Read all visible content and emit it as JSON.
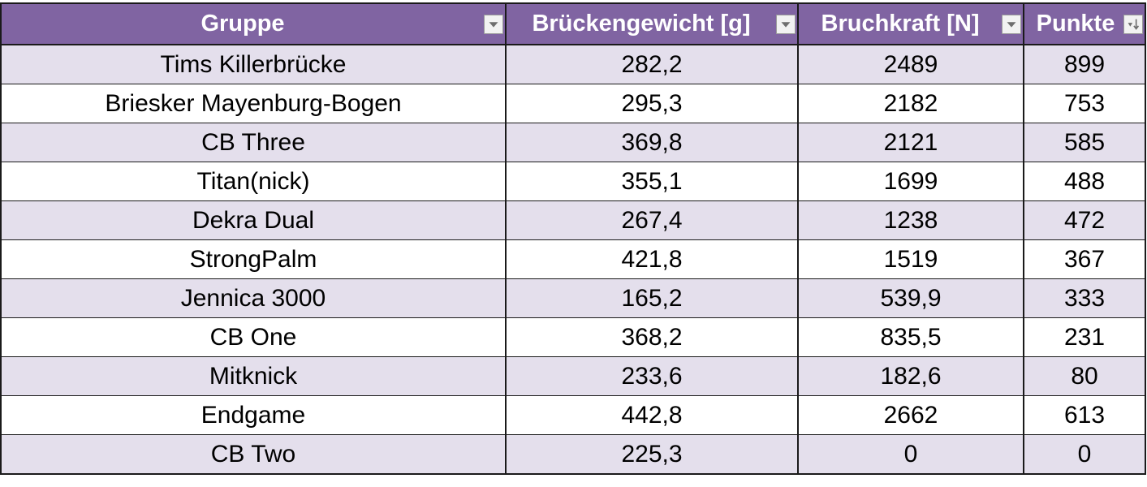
{
  "table": {
    "headers": {
      "gruppe": "Gruppe",
      "gewicht": "Brückengewicht [g]",
      "kraft": "Bruchkraft [N]",
      "punkte": "Punkte"
    },
    "filter_icons": {
      "gruppe": "dropdown-arrow-icon",
      "gewicht": "dropdown-arrow-icon",
      "kraft": "dropdown-arrow-icon",
      "punkte": "sort-descending-icon"
    },
    "rows": [
      {
        "gruppe": "Tims Killerbrücke",
        "gewicht": "282,2",
        "kraft": "2489",
        "punkte": "899"
      },
      {
        "gruppe": "Briesker Mayenburg-Bogen",
        "gewicht": "295,3",
        "kraft": "2182",
        "punkte": "753"
      },
      {
        "gruppe": "CB Three",
        "gewicht": "369,8",
        "kraft": "2121",
        "punkte": "585"
      },
      {
        "gruppe": "Titan(nick)",
        "gewicht": "355,1",
        "kraft": "1699",
        "punkte": "488"
      },
      {
        "gruppe": "Dekra Dual",
        "gewicht": "267,4",
        "kraft": "1238",
        "punkte": "472"
      },
      {
        "gruppe": "StrongPalm",
        "gewicht": "421,8",
        "kraft": "1519",
        "punkte": "367"
      },
      {
        "gruppe": "Jennica 3000",
        "gewicht": "165,2",
        "kraft": "539,9",
        "punkte": "333"
      },
      {
        "gruppe": "CB One",
        "gewicht": "368,2",
        "kraft": "835,5",
        "punkte": "231"
      },
      {
        "gruppe": "Mitknick",
        "gewicht": "233,6",
        "kraft": "182,6",
        "punkte": "80"
      },
      {
        "gruppe": "Endgame",
        "gewicht": "442,8",
        "kraft": "2662",
        "punkte": "613"
      },
      {
        "gruppe": "CB Two",
        "gewicht": "225,3",
        "kraft": "0",
        "punkte": "0"
      }
    ]
  },
  "colors": {
    "header_bg": "#8064a2",
    "band_bg": "#e4dfec",
    "grid": "#1a1a1a"
  }
}
